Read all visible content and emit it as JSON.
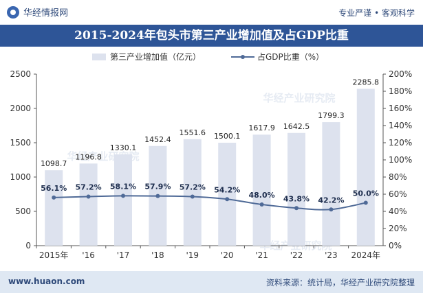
{
  "header": {
    "brand": "华经情报网",
    "tagline": "专业严谨 • 客观科学"
  },
  "footer": {
    "website": "www.huaon.com",
    "source": "资料来源：统计局，华经产业研究院整理"
  },
  "watermark": "华经产业研究院",
  "colors": {
    "title_bg": "#2e5597",
    "bar": "#dde2ee",
    "line": "#4f6a97",
    "footer_bg": "#dfe8f3"
  },
  "chart_data": {
    "type": "bar",
    "title": "2015-2024年包头市第三产业增加值及占GDP比重",
    "categories": [
      "2015年",
      "'16",
      "'17",
      "'18",
      "'19",
      "'20",
      "'21",
      "'22",
      "'23",
      "2024年"
    ],
    "series": [
      {
        "name": "第三产业增加值（亿元）",
        "type": "bar",
        "axis": "left",
        "values": [
          1098.7,
          1196.8,
          1330.1,
          1452.4,
          1551.6,
          1500.1,
          1617.9,
          1642.5,
          1799.3,
          2285.8
        ],
        "labels": [
          "1098.7",
          "1196.8",
          "1330.1",
          "1452.4",
          "1551.6",
          "1500.1",
          "1617.9",
          "1642.5",
          "1799.3",
          "2285.8"
        ]
      },
      {
        "name": "占GDP比重（%）",
        "type": "line",
        "axis": "right",
        "values": [
          56.1,
          57.2,
          58.1,
          57.9,
          57.2,
          54.2,
          48.0,
          43.8,
          42.2,
          50.0
        ],
        "labels": [
          "56.1%",
          "57.2%",
          "58.1%",
          "57.9%",
          "57.2%",
          "54.2%",
          "48.0%",
          "43.8%",
          "42.2%",
          "50.0%"
        ]
      }
    ],
    "y_left": {
      "min": 0,
      "max": 2500,
      "ticks": [
        "0",
        "500",
        "1000",
        "1500",
        "2000",
        "2500"
      ]
    },
    "y_right": {
      "min": 0,
      "max": 200,
      "ticks": [
        "0%",
        "20%",
        "40%",
        "60%",
        "80%",
        "100%",
        "120%",
        "140%",
        "160%",
        "180%",
        "200%"
      ]
    },
    "legend_position": "top-center",
    "grid": false
  }
}
